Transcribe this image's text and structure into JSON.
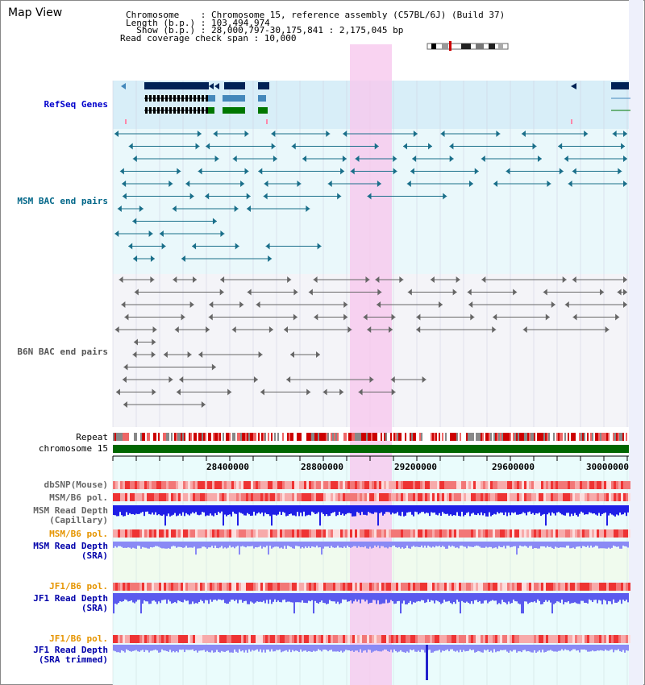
{
  "header": {
    "view_title": "Map View",
    "info_lines": [
      "Chromosome    : Chromosome 15, reference assembly (C57BL/6J) (Build 37)",
      "Length (b.p.) : 103,494,974",
      "  Show (b.p.) : 28,000,797-30,175,841 : 2,175,045 bp",
      "Read coverage check span : 10,000"
    ]
  },
  "tracks": {
    "refseq": {
      "label": "RefSeq Genes",
      "color": "#0000cc"
    },
    "msm_bac": {
      "label": "MSM BAC end pairs",
      "color": "#006688"
    },
    "b6n_bac": {
      "label": "B6N BAC end pairs",
      "color": "#555555"
    },
    "repeat": {
      "label": "Repeat"
    },
    "chromosome": {
      "label": "chromosome 15"
    },
    "dbsnp": {
      "label": "dbSNP(Mouse)"
    },
    "msm_b6_pol_1": {
      "label": "MSM/B6 pol."
    },
    "msm_depth_cap": {
      "label": "MSM Read Depth\n(Capillary)"
    },
    "msm_b6_pol_2": {
      "label": "MSM/B6 pol."
    },
    "msm_depth_sra": {
      "label": "MSM Read Depth\n(SRA)"
    },
    "jf1_b6_pol_1": {
      "label": "JF1/B6 pol."
    },
    "jf1_depth_sra": {
      "label": "JF1 Read Depth\n(SRA)"
    },
    "jf1_b6_pol_2": {
      "label": "JF1/B6 pol."
    },
    "jf1_depth_trim": {
      "label": "JF1 Read Depth\n(SRA trimmed)"
    }
  },
  "axis": {
    "ticks": [
      "28400000",
      "28800000",
      "29200000",
      "29600000",
      "30000000"
    ]
  },
  "colors": {
    "gene_dark": "#002255",
    "gene_mid": "#4488bb",
    "gene_green": "#007700",
    "highlight": "#f8d0f0",
    "chromosome_bar": "#006600",
    "depth_blue": "#2222ee",
    "depth_light": "#8888ff",
    "label_orange": "#e69500",
    "label_blue": "#0000aa"
  }
}
